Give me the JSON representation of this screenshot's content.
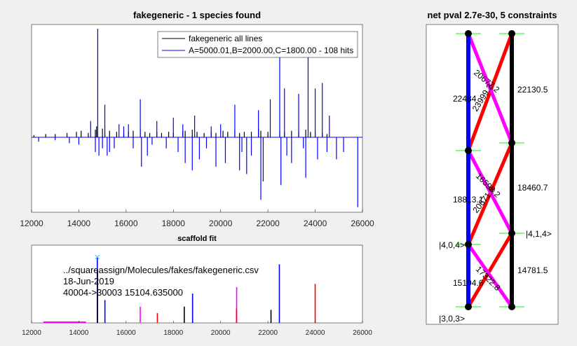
{
  "colors": {
    "figure_bg": "#f0f0f0",
    "axes_bg": "#ffffff",
    "blue": "#0000ff",
    "black": "#000000",
    "red": "#ff0000",
    "magenta": "#ff00ff",
    "green": "#00ff00",
    "cyan": "#4dbeee"
  },
  "chart_data": [
    {
      "type": "line",
      "title": "fakegeneric - 1 species found",
      "xlim": [
        12000,
        26000
      ],
      "xticks": [
        "12000",
        "14000",
        "16000",
        "18000",
        "20000",
        "22000",
        "24000",
        "26000"
      ],
      "legend": {
        "placement": "top-right",
        "entries": [
          "fakegeneric all lines",
          "A=5000.01,B=2000.00,C=1800.00 - 108 hits"
        ]
      },
      "series": [
        {
          "name": "fakegeneric all lines",
          "color": "#000000",
          "x": [
            12100,
            12600,
            13000,
            13500,
            13900,
            14100,
            14400,
            14700,
            14750,
            14800,
            15000,
            15100,
            15300,
            15600,
            15900,
            16100,
            16300,
            16600,
            16800,
            17000,
            17300,
            17500,
            17800,
            18000,
            18400,
            18500,
            18800,
            19000,
            19300,
            19600,
            19800,
            20100,
            20300,
            20600,
            20800,
            21000,
            21300,
            21600,
            21700,
            22000,
            22500,
            22700,
            23000,
            23300,
            23600,
            23800,
            24000,
            24300,
            24500
          ],
          "y": [
            0.02,
            0.03,
            0.03,
            0.04,
            0.05,
            0.06,
            0.04,
            0.07,
            0.1,
            0.06,
            0.08,
            0.05,
            0.06,
            0.05,
            0.04,
            0.05,
            0.06,
            0.08,
            0.05,
            0.04,
            0.05,
            0.04,
            0.05,
            0.04,
            0.06,
            0.06,
            0.07,
            0.05,
            0.04,
            0.05,
            0.04,
            0.06,
            0.05,
            0.07,
            0.04,
            0.05,
            0.05,
            0.08,
            0.06,
            0.05,
            0.06,
            0.05,
            0.06,
            0.05,
            0.07,
            0.05,
            0.06,
            0.04,
            0.03
          ]
        },
        {
          "name": "A=5000.01,B=2000.00,C=1800.00 - 108 hits",
          "color": "#0000ff",
          "x": [
            12300,
            13000,
            13600,
            14000,
            14500,
            14700,
            14800,
            14850,
            15000,
            15100,
            15200,
            15300,
            15500,
            15700,
            15900,
            16100,
            16300,
            16600,
            16650,
            16900,
            17100,
            17300,
            17700,
            18000,
            18200,
            18400,
            18500,
            18800,
            18900,
            19100,
            19400,
            19600,
            19800,
            20000,
            20200,
            20600,
            20800,
            20900,
            21100,
            21300,
            21600,
            21700,
            21800,
            22100,
            22500,
            22550,
            22700,
            22800,
            23000,
            23300,
            23500,
            23600,
            23700,
            24000,
            24100,
            24300,
            24500,
            24600,
            24900,
            25200,
            25800
          ],
          "y": [
            -0.06,
            -0.04,
            -0.08,
            -0.1,
            0.15,
            -0.2,
            1.0,
            -0.25,
            -0.15,
            0.3,
            -0.25,
            -0.2,
            -0.15,
            0.12,
            0.1,
            0.12,
            -0.15,
            0.35,
            -0.4,
            -0.25,
            -0.1,
            0.15,
            -0.15,
            0.18,
            -0.2,
            0.12,
            -0.35,
            -0.45,
            0.2,
            -0.3,
            -0.15,
            0.1,
            -0.4,
            0.12,
            -0.35,
            0.3,
            -0.45,
            -0.2,
            -0.5,
            -0.25,
            0.25,
            -0.85,
            -0.6,
            0.35,
            0.8,
            -0.65,
            0.45,
            -0.25,
            -0.35,
            0.4,
            -0.15,
            -0.55,
            0.9,
            0.45,
            -0.3,
            0.5,
            -0.2,
            0.2,
            -0.3,
            -0.2,
            -0.95
          ]
        }
      ]
    },
    {
      "type": "bar",
      "title": "scaffold fit",
      "xlim": [
        12000,
        26000
      ],
      "xticks": [
        "12000",
        "14000",
        "16000",
        "18000",
        "20000",
        "22000",
        "24000",
        "26000"
      ],
      "annotations": [
        "../squareassign/Molecules/fakes/fakegeneric.csv",
        "18-Jun-2019",
        "40004->30003 15104.635000"
      ],
      "marker": {
        "x": 14781.5,
        "symbol": "x"
      },
      "segments": [
        {
          "color": "#ff00ff",
          "x": [
            12500,
            14300
          ]
        }
      ],
      "series": [
        {
          "name": "blue",
          "color": "#0000ff",
          "x": [
            14781.5,
            15104.6,
            18813.1,
            22484
          ],
          "values": [
            1.0,
            0.35,
            0.45,
            0.9
          ]
        },
        {
          "name": "black",
          "color": "#000000",
          "x": [
            14790,
            18460.7,
            22130.5
          ],
          "values": [
            0.8,
            0.25,
            0.2
          ]
        },
        {
          "name": "magenta",
          "color": "#ff00ff",
          "x": [
            16598.2,
            20677.2
          ],
          "values": [
            0.25,
            0.55
          ]
        },
        {
          "name": "red",
          "color": "#ff0000",
          "x": [
            17322.8,
            20671.8,
            23999.2
          ],
          "values": [
            0.15,
            0.22,
            0.6
          ]
        }
      ]
    },
    {
      "type": "diagram",
      "title": "net pval 2.7e-30, 5 constraints",
      "node_labels": [
        "|3,0,3>",
        "|4,0,4>",
        "|4,1,4>"
      ],
      "edge_labels": [
        "22484",
        "20677.2",
        "23999.2",
        "22130.5",
        "18813.1",
        "16598.2",
        "20671.8",
        "18460.7",
        "15104.6",
        "17322.8",
        "14781.5"
      ]
    }
  ]
}
